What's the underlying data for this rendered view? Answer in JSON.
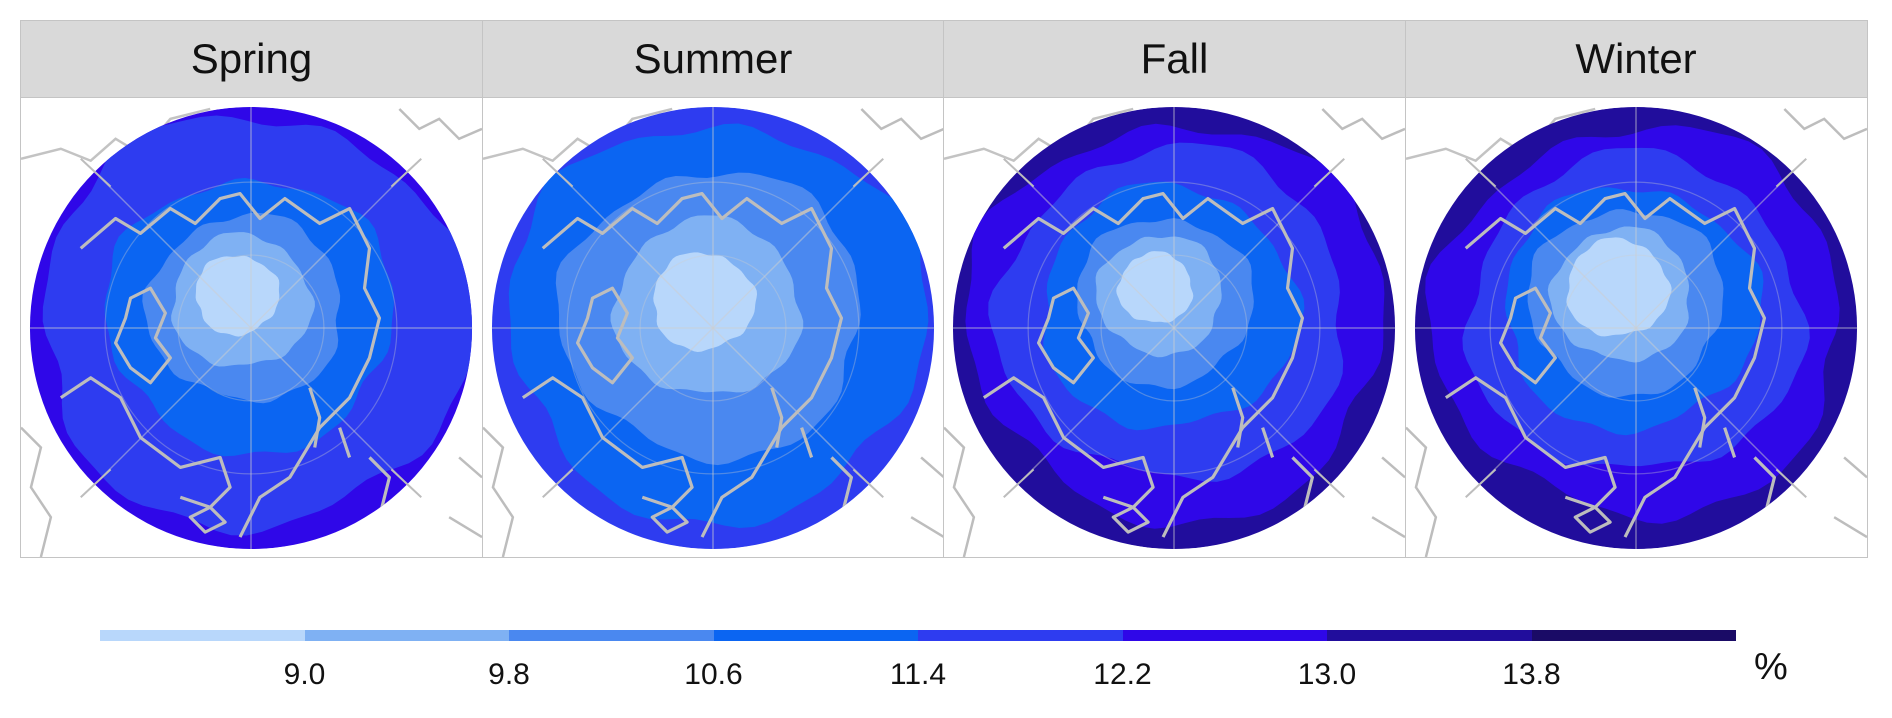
{
  "panels": [
    {
      "title": "Spring",
      "season": "spring"
    },
    {
      "title": "Summer",
      "season": "summer"
    },
    {
      "title": "Fall",
      "season": "fall"
    },
    {
      "title": "Winter",
      "season": "winter"
    }
  ],
  "legend": {
    "unit": "%",
    "breaks": [
      "9.0",
      "9.8",
      "10.6",
      "11.4",
      "12.2",
      "13.0",
      "13.8"
    ],
    "colors": [
      "#b8d7fb",
      "#7fb1f3",
      "#4a88f0",
      "#0b65f2",
      "#2e3cf0",
      "#2f07e8",
      "#210d9c",
      "#1a0b66"
    ]
  },
  "map": {
    "land_outline_color": "#bdbdbd",
    "gridline_color": "#cfcfcf"
  }
}
